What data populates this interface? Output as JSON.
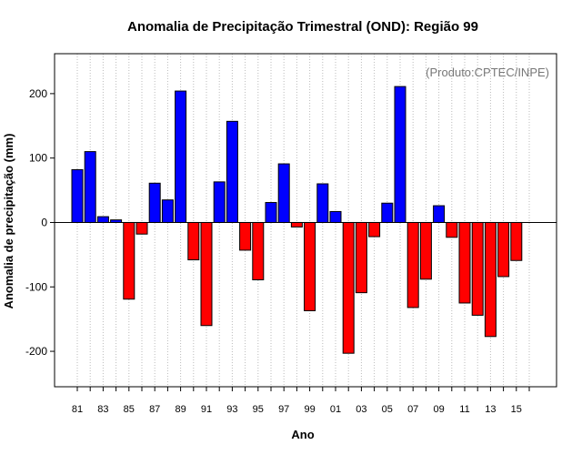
{
  "chart_data": {
    "type": "bar",
    "title": "Anomalia de Precipitação Trimestral (OND): Região 99",
    "xlabel": "Ano",
    "ylabel": "Anomalia de precipitação (mm)",
    "credit": "(Produto:CPTEC/INPE)",
    "ylim": [
      -255,
      262
    ],
    "yticks": [
      -200,
      -100,
      0,
      100,
      200
    ],
    "ytick_labels": [
      "-200",
      "-100",
      "0",
      "100",
      "200"
    ],
    "grid": "vertical-dotted",
    "categories": [
      "1981",
      "1982",
      "1983",
      "1984",
      "1985",
      "1986",
      "1987",
      "1988",
      "1989",
      "1990",
      "1991",
      "1992",
      "1993",
      "1994",
      "1995",
      "1996",
      "1997",
      "1998",
      "1999",
      "2000",
      "2001",
      "2002",
      "2003",
      "2004",
      "2005",
      "2006",
      "2007",
      "2008",
      "2009",
      "2010",
      "2011",
      "2012",
      "2013",
      "2014",
      "2015"
    ],
    "values": [
      82,
      110,
      9,
      4,
      -119,
      -18,
      61,
      35,
      204,
      -58,
      -160,
      63,
      157,
      -43,
      -89,
      31,
      91,
      -7,
      -137,
      60,
      17,
      -203,
      -109,
      -22,
      30,
      211,
      -132,
      -88,
      26,
      -23,
      -125,
      -144,
      -177,
      -84,
      -59
    ],
    "xtick_labels": [
      "81",
      "83",
      "85",
      "87",
      "89",
      "91",
      "93",
      "95",
      "97",
      "99",
      "01",
      "03",
      "05",
      "07",
      "09",
      "11",
      "13",
      "15"
    ],
    "positive_color": "#0000ff",
    "negative_color": "#ff0000"
  }
}
